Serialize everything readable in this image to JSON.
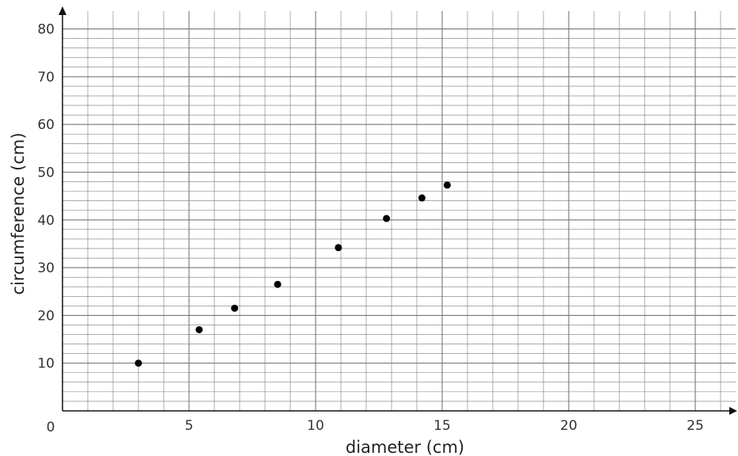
{
  "chart_data": {
    "type": "scatter",
    "xlabel": "diameter (cm)",
    "ylabel": "circumference (cm)",
    "origin_label": "0",
    "xlim": [
      0,
      26.5
    ],
    "ylim": [
      0,
      82
    ],
    "x_ticks": [
      5,
      10,
      15,
      20,
      25
    ],
    "y_ticks": [
      10,
      20,
      30,
      40,
      50,
      60,
      70,
      80
    ],
    "x_tick_labels": [
      "5",
      "10",
      "15",
      "20",
      "25"
    ],
    "y_tick_labels": [
      "10",
      "20",
      "30",
      "40",
      "50",
      "60",
      "70",
      "80"
    ],
    "grid": true,
    "minor_grid_x": 1,
    "minor_grid_y": 2,
    "point_color": "#000000",
    "grid_color": "#777777",
    "points": [
      {
        "x": 3.0,
        "y": 10.0
      },
      {
        "x": 5.4,
        "y": 17.0
      },
      {
        "x": 6.8,
        "y": 21.5
      },
      {
        "x": 8.5,
        "y": 26.5
      },
      {
        "x": 10.9,
        "y": 34.2
      },
      {
        "x": 12.8,
        "y": 40.3
      },
      {
        "x": 14.2,
        "y": 44.6
      },
      {
        "x": 15.2,
        "y": 47.3
      }
    ]
  }
}
